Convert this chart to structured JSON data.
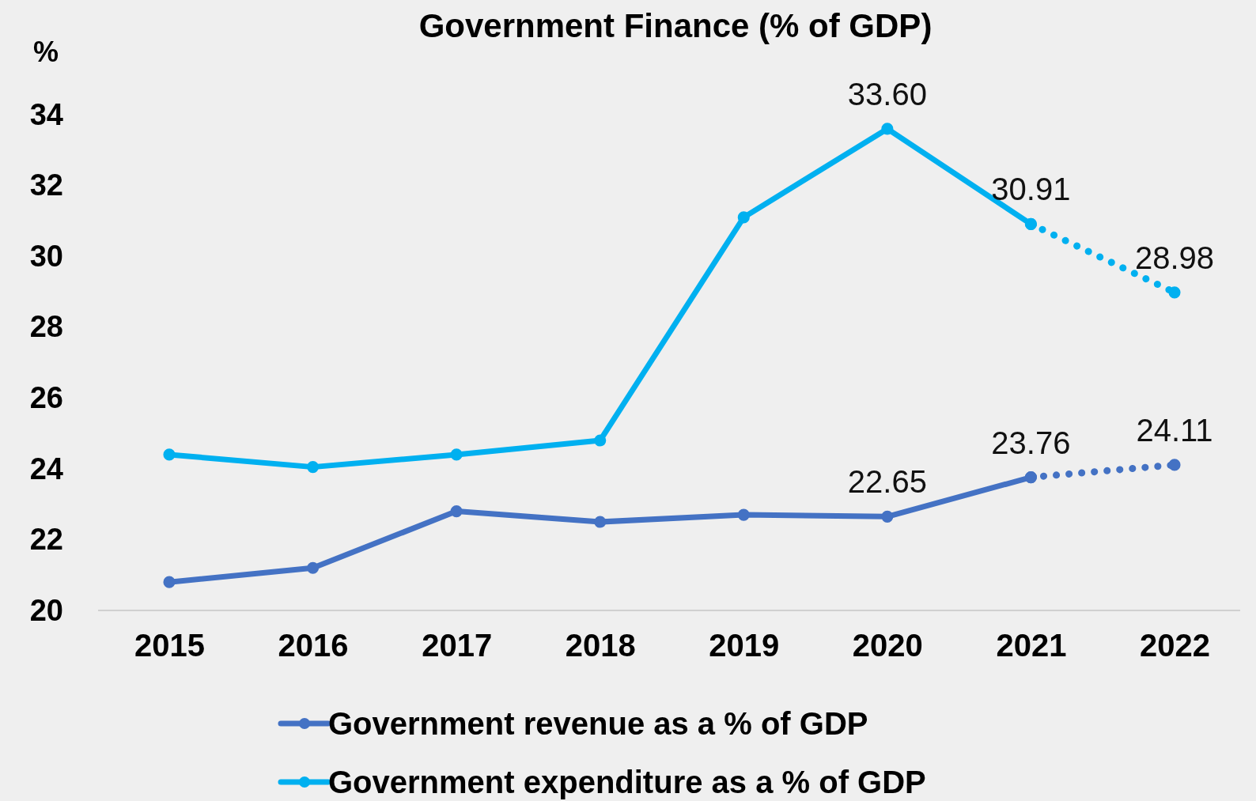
{
  "chart_data": {
    "type": "line",
    "title": "Government Finance (% of GDP)",
    "ylabel": "%",
    "categories": [
      "2015",
      "2016",
      "2017",
      "2018",
      "2019",
      "2020",
      "2021",
      "2022"
    ],
    "series": [
      {
        "name": "Government revenue as a % of GDP",
        "color": "#4472c4",
        "values": [
          20.8,
          21.2,
          22.8,
          22.5,
          22.7,
          22.65,
          23.76,
          null
        ],
        "value_labels": [
          null,
          null,
          null,
          null,
          null,
          "22.65",
          "23.76",
          null
        ]
      },
      {
        "name": "Government expenditure as a % of GDP",
        "color": "#00b0f0",
        "values": [
          24.4,
          24.05,
          24.4,
          24.8,
          31.1,
          33.6,
          30.91,
          null
        ],
        "value_labels": [
          null,
          null,
          null,
          null,
          null,
          "33.60",
          "30.91",
          null
        ]
      },
      {
        "color": "#4472c4",
        "line_style": "dotted",
        "values": [
          null,
          null,
          null,
          null,
          null,
          null,
          23.76,
          24.11
        ],
        "value_labels": [
          null,
          null,
          null,
          null,
          null,
          null,
          null,
          "24.11"
        ]
      },
      {
        "color": "#00b0f0",
        "line_style": "dotted",
        "values": [
          null,
          null,
          null,
          null,
          null,
          null,
          30.91,
          28.98
        ],
        "value_labels": [
          null,
          null,
          null,
          null,
          null,
          null,
          null,
          "28.98"
        ]
      }
    ],
    "ylim": [
      20,
      34
    ],
    "yticks": [
      20,
      22,
      24,
      26,
      28,
      30,
      32,
      34
    ],
    "grid": false,
    "legend": "bottom",
    "marker": "circle",
    "line_style": "solid"
  }
}
